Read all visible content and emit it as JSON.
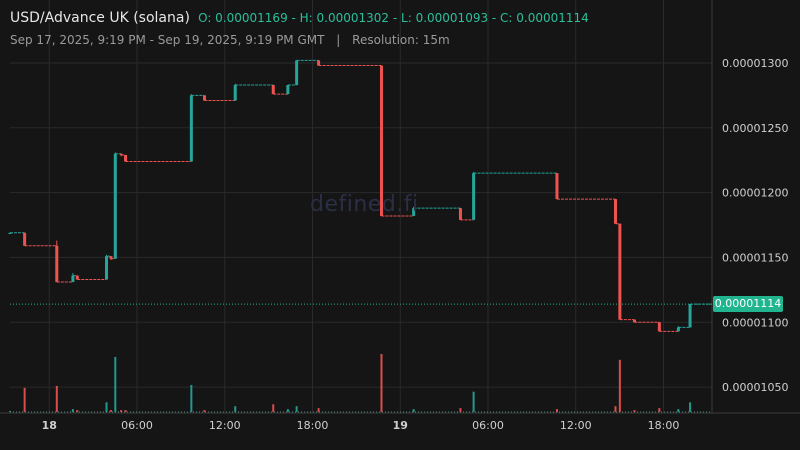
{
  "header": {
    "symbol": "USD/Advance UK (solana)",
    "ohlc": "O: 0.00001169 - H: 0.00001302 - L: 0.00001093 - C: 0.00001114",
    "date_range": "Sep 17, 2025, 9:19 PM - Sep 19, 2025, 9:19 PM GMT",
    "separator": "|",
    "resolution": "Resolution: 15m"
  },
  "watermark": "defined.fi",
  "last_price_label": "0.00001114",
  "colors": {
    "up": "#26a69a",
    "down": "#ef5350",
    "badge": "#20b58f",
    "grid": "#2a2a2a",
    "text": "#cfcfcf"
  },
  "chart_data": {
    "type": "candlestick",
    "x_unit": "hours since Sep 17, 2025 21:19 GMT",
    "x_range": [
      0,
      48
    ],
    "y_range": [
      1.03e-05,
      1.31e-05
    ],
    "y_ticks": [
      1.05e-05,
      1.1e-05,
      1.15e-05,
      1.2e-05,
      1.25e-05,
      1.3e-05
    ],
    "y_tick_labels": [
      "0.00001050",
      "0.00001100",
      "0.00001150",
      "0.00001200",
      "0.00001250",
      "0.00001300"
    ],
    "x_ticks": [
      2.683,
      8.683,
      14.683,
      20.683,
      26.683,
      32.683,
      38.683,
      44.683
    ],
    "x_tick_labels": [
      "18",
      "06:00",
      "12:00",
      "18:00",
      "19",
      "06:00",
      "12:00",
      "18:00"
    ],
    "x_tick_bold": [
      true,
      false,
      false,
      false,
      true,
      false,
      false,
      false
    ],
    "last_price": 1.114e-05,
    "candles": [
      {
        "t": 0.0,
        "o": 1.169e-05,
        "h": 1.169e-05,
        "l": 1.169e-05,
        "c": 1.169e-05,
        "v": 1
      },
      {
        "t": 1.0,
        "o": 1.169e-05,
        "h": 1.169e-05,
        "l": 1.159e-05,
        "c": 1.159e-05,
        "v": 25
      },
      {
        "t": 3.2,
        "o": 1.159e-05,
        "h": 1.163e-05,
        "l": 1.131e-05,
        "c": 1.131e-05,
        "v": 27
      },
      {
        "t": 4.3,
        "o": 1.131e-05,
        "h": 1.138e-05,
        "l": 1.131e-05,
        "c": 1.136e-05,
        "v": 3
      },
      {
        "t": 4.6,
        "o": 1.136e-05,
        "h": 1.136e-05,
        "l": 1.133e-05,
        "c": 1.133e-05,
        "v": 2
      },
      {
        "t": 6.6,
        "o": 1.133e-05,
        "h": 1.152e-05,
        "l": 1.133e-05,
        "c": 1.151e-05,
        "v": 10
      },
      {
        "t": 6.9,
        "o": 1.151e-05,
        "h": 1.151e-05,
        "l": 1.148e-05,
        "c": 1.149e-05,
        "v": 2
      },
      {
        "t": 7.2,
        "o": 1.149e-05,
        "h": 1.231e-05,
        "l": 1.149e-05,
        "c": 1.23e-05,
        "v": 57
      },
      {
        "t": 7.6,
        "o": 1.23e-05,
        "h": 1.23e-05,
        "l": 1.228e-05,
        "c": 1.229e-05,
        "v": 2
      },
      {
        "t": 7.9,
        "o": 1.229e-05,
        "h": 1.229e-05,
        "l": 1.224e-05,
        "c": 1.224e-05,
        "v": 2
      },
      {
        "t": 12.4,
        "o": 1.224e-05,
        "h": 1.276e-05,
        "l": 1.224e-05,
        "c": 1.275e-05,
        "v": 28
      },
      {
        "t": 13.3,
        "o": 1.275e-05,
        "h": 1.275e-05,
        "l": 1.271e-05,
        "c": 1.271e-05,
        "v": 2
      },
      {
        "t": 15.4,
        "o": 1.271e-05,
        "h": 1.284e-05,
        "l": 1.271e-05,
        "c": 1.283e-05,
        "v": 6
      },
      {
        "t": 18.0,
        "o": 1.283e-05,
        "h": 1.283e-05,
        "l": 1.276e-05,
        "c": 1.276e-05,
        "v": 8
      },
      {
        "t": 19.0,
        "o": 1.276e-05,
        "h": 1.283e-05,
        "l": 1.276e-05,
        "c": 1.283e-05,
        "v": 3
      },
      {
        "t": 19.6,
        "o": 1.283e-05,
        "h": 1.302e-05,
        "l": 1.283e-05,
        "c": 1.302e-05,
        "v": 6
      },
      {
        "t": 21.1,
        "o": 1.302e-05,
        "h": 1.302e-05,
        "l": 1.298e-05,
        "c": 1.298e-05,
        "v": 4
      },
      {
        "t": 25.4,
        "o": 1.298e-05,
        "h": 1.298e-05,
        "l": 1.182e-05,
        "c": 1.182e-05,
        "v": 60
      },
      {
        "t": 27.6,
        "o": 1.182e-05,
        "h": 1.189e-05,
        "l": 1.182e-05,
        "c": 1.188e-05,
        "v": 3
      },
      {
        "t": 30.8,
        "o": 1.188e-05,
        "h": 1.188e-05,
        "l": 1.179e-05,
        "c": 1.179e-05,
        "v": 4
      },
      {
        "t": 31.7,
        "o": 1.179e-05,
        "h": 1.216e-05,
        "l": 1.179e-05,
        "c": 1.215e-05,
        "v": 21
      },
      {
        "t": 37.4,
        "o": 1.215e-05,
        "h": 1.215e-05,
        "l": 1.195e-05,
        "c": 1.195e-05,
        "v": 3
      },
      {
        "t": 41.4,
        "o": 1.195e-05,
        "h": 1.195e-05,
        "l": 1.176e-05,
        "c": 1.176e-05,
        "v": 6
      },
      {
        "t": 41.7,
        "o": 1.176e-05,
        "h": 1.176e-05,
        "l": 1.102e-05,
        "c": 1.102e-05,
        "v": 54
      },
      {
        "t": 42.7,
        "o": 1.102e-05,
        "h": 1.102e-05,
        "l": 1.1e-05,
        "c": 1.1e-05,
        "v": 2
      },
      {
        "t": 44.4,
        "o": 1.1e-05,
        "h": 1.1e-05,
        "l": 1.093e-05,
        "c": 1.093e-05,
        "v": 4
      },
      {
        "t": 45.7,
        "o": 1.093e-05,
        "h": 1.097e-05,
        "l": 1.093e-05,
        "c": 1.096e-05,
        "v": 3
      },
      {
        "t": 46.5,
        "o": 1.096e-05,
        "h": 1.114e-05,
        "l": 1.096e-05,
        "c": 1.114e-05,
        "v": 10
      }
    ]
  }
}
